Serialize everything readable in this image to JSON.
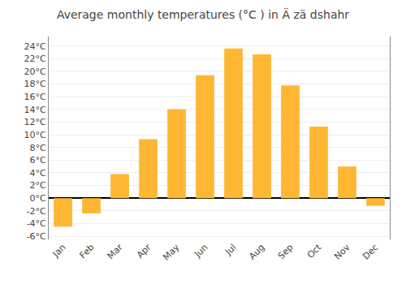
{
  "chart_data": {
    "type": "bar",
    "title": "Average monthly temperatures (°C ) in Ä zä dshahr",
    "categories": [
      "Jan",
      "Feb",
      "Mar",
      "Apr",
      "May",
      "Jun",
      "Jul",
      "Aug",
      "Sep",
      "Oct",
      "Nov",
      "Dec"
    ],
    "values": [
      -4.5,
      -2.4,
      3.8,
      9.3,
      14.0,
      19.4,
      23.6,
      22.7,
      17.8,
      11.3,
      5.0,
      -1.2
    ],
    "color": "#FFB733",
    "ylim": [
      -6.5,
      25.5
    ],
    "yticks": [
      {
        "value": -6,
        "label": "-6°C"
      },
      {
        "value": -4,
        "label": "-4°C"
      },
      {
        "value": -2,
        "label": "-2°C"
      },
      {
        "value": 0,
        "label": "0°C"
      },
      {
        "value": 2,
        "label": "2°C"
      },
      {
        "value": 4,
        "label": "4°C"
      },
      {
        "value": 6,
        "label": "6°C"
      },
      {
        "value": 8,
        "label": "8°C"
      },
      {
        "value": 10,
        "label": "10°C"
      },
      {
        "value": 12,
        "label": "12°C"
      },
      {
        "value": 14,
        "label": "14°C"
      },
      {
        "value": 16,
        "label": "16°C"
      },
      {
        "value": 18,
        "label": "18°C"
      },
      {
        "value": 20,
        "label": "20°C"
      },
      {
        "value": 22,
        "label": "22°C"
      },
      {
        "value": 24,
        "label": "24°C"
      }
    ],
    "grid": true
  }
}
